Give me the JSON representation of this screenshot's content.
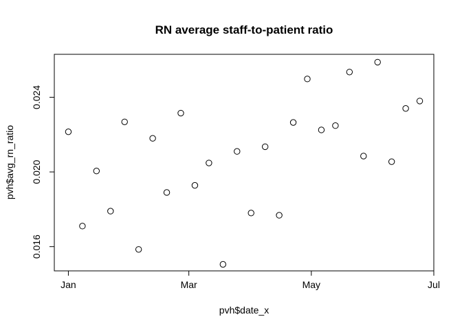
{
  "chart_data": {
    "type": "scatter",
    "title": "RN average staff-to-patient ratio",
    "xlabel": "pvh$date_x",
    "ylabel": "pvh$avg_rn_ratio",
    "x_ticks": [
      {
        "value": "2020-01-01",
        "label": "Jan"
      },
      {
        "value": "2020-03-01",
        "label": "Mar"
      },
      {
        "value": "2020-05-01",
        "label": "May"
      },
      {
        "value": "2020-07-01",
        "label": "Jul"
      }
    ],
    "y_ticks": [
      {
        "value": 0.016,
        "label": "0.016"
      },
      {
        "value": 0.02,
        "label": "0.020"
      },
      {
        "value": 0.024,
        "label": "0.024"
      }
    ],
    "xlim": [
      "2019-12-25",
      "2020-07-01"
    ],
    "ylim": [
      0.0147,
      0.0263
    ],
    "grid": false,
    "points": [
      {
        "x": "2020-01-01",
        "y": 0.02215
      },
      {
        "x": "2020-01-08",
        "y": 0.0171
      },
      {
        "x": "2020-01-15",
        "y": 0.02005
      },
      {
        "x": "2020-01-22",
        "y": 0.0179
      },
      {
        "x": "2020-01-29",
        "y": 0.02268
      },
      {
        "x": "2020-02-05",
        "y": 0.01585
      },
      {
        "x": "2020-02-12",
        "y": 0.0218
      },
      {
        "x": "2020-02-19",
        "y": 0.0189
      },
      {
        "x": "2020-02-26",
        "y": 0.02315
      },
      {
        "x": "2020-03-04",
        "y": 0.01928
      },
      {
        "x": "2020-03-11",
        "y": 0.02048
      },
      {
        "x": "2020-03-18",
        "y": 0.01505
      },
      {
        "x": "2020-03-25",
        "y": 0.0211
      },
      {
        "x": "2020-04-01",
        "y": 0.0178
      },
      {
        "x": "2020-04-08",
        "y": 0.02135
      },
      {
        "x": "2020-04-15",
        "y": 0.01768
      },
      {
        "x": "2020-04-22",
        "y": 0.02265
      },
      {
        "x": "2020-04-29",
        "y": 0.02498
      },
      {
        "x": "2020-05-06",
        "y": 0.02225
      },
      {
        "x": "2020-05-13",
        "y": 0.02248
      },
      {
        "x": "2020-05-20",
        "y": 0.02535
      },
      {
        "x": "2020-05-27",
        "y": 0.02085
      },
      {
        "x": "2020-06-03",
        "y": 0.02588
      },
      {
        "x": "2020-06-10",
        "y": 0.02055
      },
      {
        "x": "2020-06-17",
        "y": 0.0234
      },
      {
        "x": "2020-06-24",
        "y": 0.0238
      }
    ],
    "marker": "open-circle",
    "colors": {
      "marker": "#000000",
      "axis": "#000000",
      "background": "#ffffff"
    }
  }
}
